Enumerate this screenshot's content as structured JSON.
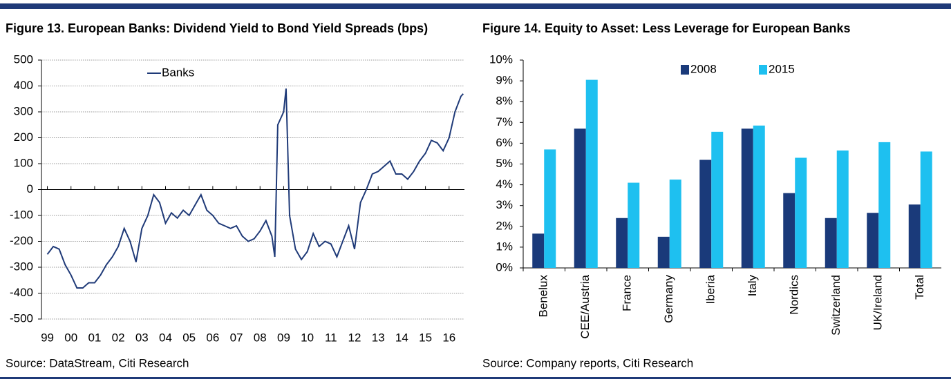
{
  "chart_data": [
    {
      "type": "line",
      "title": "Figure 13. European Banks: Dividend Yield to Bond Yield Spreads (bps)",
      "source": "Source: DataStream, Citi Research",
      "x": [
        1999.0,
        1999.25,
        1999.5,
        1999.75,
        2000.0,
        2000.25,
        2000.5,
        2000.75,
        2001.0,
        2001.25,
        2001.5,
        2001.75,
        2002.0,
        2002.25,
        2002.5,
        2002.75,
        2003.0,
        2003.25,
        2003.5,
        2003.75,
        2004.0,
        2004.25,
        2004.5,
        2004.75,
        2005.0,
        2005.25,
        2005.5,
        2005.75,
        2006.0,
        2006.25,
        2006.5,
        2006.75,
        2007.0,
        2007.25,
        2007.5,
        2007.75,
        2008.0,
        2008.25,
        2008.5,
        2008.625,
        2008.75,
        2009.0,
        2009.1,
        2009.25,
        2009.5,
        2009.75,
        2010.0,
        2010.25,
        2010.5,
        2010.75,
        2011.0,
        2011.25,
        2011.5,
        2011.75,
        2012.0,
        2012.25,
        2012.5,
        2012.75,
        2013.0,
        2013.25,
        2013.5,
        2013.75,
        2014.0,
        2014.25,
        2014.5,
        2014.75,
        2015.0,
        2015.25,
        2015.5,
        2015.75,
        2016.0,
        2016.25,
        2016.5,
        2016.6
      ],
      "series": [
        {
          "name": "Banks",
          "color": "#1f3a78",
          "values": [
            -250,
            -220,
            -230,
            -290,
            -330,
            -380,
            -380,
            -360,
            -360,
            -330,
            -290,
            -260,
            -220,
            -150,
            -200,
            -280,
            -150,
            -100,
            -20,
            -50,
            -130,
            -90,
            -110,
            -80,
            -100,
            -60,
            -20,
            -80,
            -100,
            -130,
            -140,
            -150,
            -140,
            -180,
            -200,
            -190,
            -160,
            -120,
            -180,
            -260,
            250,
            300,
            390,
            -100,
            -230,
            -270,
            -240,
            -170,
            -220,
            -200,
            -210,
            -260,
            -200,
            -140,
            -230,
            -50,
            0,
            60,
            70,
            90,
            110,
            60,
            60,
            40,
            70,
            110,
            140,
            190,
            180,
            150,
            200,
            300,
            360,
            370
          ]
        }
      ],
      "xlim": [
        1998.75,
        2016.65
      ],
      "xticks": [
        {
          "value": 1999,
          "label": "99"
        },
        {
          "value": 2000,
          "label": "00"
        },
        {
          "value": 2001,
          "label": "01"
        },
        {
          "value": 2002,
          "label": "02"
        },
        {
          "value": 2003,
          "label": "03"
        },
        {
          "value": 2004,
          "label": "04"
        },
        {
          "value": 2005,
          "label": "05"
        },
        {
          "value": 2006,
          "label": "06"
        },
        {
          "value": 2007,
          "label": "07"
        },
        {
          "value": 2008,
          "label": "08"
        },
        {
          "value": 2009,
          "label": "09"
        },
        {
          "value": 2010,
          "label": "10"
        },
        {
          "value": 2011,
          "label": "11"
        },
        {
          "value": 2012,
          "label": "12"
        },
        {
          "value": 2013,
          "label": "13"
        },
        {
          "value": 2014,
          "label": "14"
        },
        {
          "value": 2015,
          "label": "15"
        },
        {
          "value": 2016,
          "label": "16"
        }
      ],
      "ylim": [
        -500,
        500
      ],
      "yticks": [
        -500,
        -400,
        -300,
        -200,
        -100,
        0,
        100,
        200,
        300,
        400,
        500
      ],
      "grid": true
    },
    {
      "type": "bar",
      "title": "Figure 14. Equity to Asset: Less Leverage for European Banks",
      "source": "Source: Company reports, Citi Research",
      "categories": [
        "Benelux",
        "CEE/Austria",
        "France",
        "Germany",
        "Iberia",
        "Italy",
        "Nordics",
        "Switzerland",
        "UK/Ireland",
        "Total"
      ],
      "series": [
        {
          "name": "2008",
          "color": "#1a3a7a",
          "values": [
            1.65,
            6.7,
            2.4,
            1.5,
            5.2,
            6.7,
            3.6,
            2.4,
            2.65,
            3.05
          ]
        },
        {
          "name": "2015",
          "color": "#1ec0f0",
          "values": [
            5.7,
            9.05,
            4.1,
            4.25,
            6.55,
            6.85,
            5.3,
            5.65,
            6.05,
            5.6
          ]
        }
      ],
      "ylim": [
        0,
        10
      ],
      "yticks": [
        {
          "value": 0,
          "label": "0%"
        },
        {
          "value": 1,
          "label": "1%"
        },
        {
          "value": 2,
          "label": "2%"
        },
        {
          "value": 3,
          "label": "3%"
        },
        {
          "value": 4,
          "label": "4%"
        },
        {
          "value": 5,
          "label": "5%"
        },
        {
          "value": 6,
          "label": "6%"
        },
        {
          "value": 7,
          "label": "7%"
        },
        {
          "value": 8,
          "label": "8%"
        },
        {
          "value": 9,
          "label": "9%"
        },
        {
          "value": 10,
          "label": "10%"
        }
      ],
      "grid": false
    }
  ]
}
